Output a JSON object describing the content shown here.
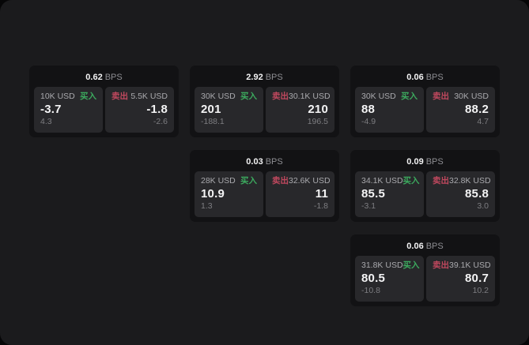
{
  "colors": {
    "buy_green": "#3caa5e",
    "sell_red": "#c0485e",
    "surface_bg": "#1b1b1d",
    "card_bg": "#121214",
    "tile_bg": "#28282b"
  },
  "cards": [
    {
      "grid_position": {
        "row": 1,
        "col": 1
      },
      "bps_value": "0.62",
      "bps_unit": "BPS",
      "buy": {
        "amount": "10K USD",
        "side_label": "买入",
        "price": "-3.7",
        "delta": "4.3"
      },
      "sell": {
        "amount": "5.5K USD",
        "side_label": "卖出",
        "price": "-1.8",
        "delta": "-2.6"
      }
    },
    {
      "grid_position": {
        "row": 1,
        "col": 2
      },
      "bps_value": "2.92",
      "bps_unit": "BPS",
      "buy": {
        "amount": "30K USD",
        "side_label": "买入",
        "price": "201",
        "delta": "-188.1"
      },
      "sell": {
        "amount": "30.1K USD",
        "side_label": "卖出",
        "price": "210",
        "delta": "196.5"
      }
    },
    {
      "grid_position": {
        "row": 1,
        "col": 3
      },
      "bps_value": "0.06",
      "bps_unit": "BPS",
      "buy": {
        "amount": "30K USD",
        "side_label": "买入",
        "price": "88",
        "delta": "-4.9"
      },
      "sell": {
        "amount": "30K USD",
        "side_label": "卖出",
        "price": "88.2",
        "delta": "4.7"
      }
    },
    {
      "grid_position": {
        "row": 2,
        "col": 2
      },
      "bps_value": "0.03",
      "bps_unit": "BPS",
      "buy": {
        "amount": "28K USD",
        "side_label": "买入",
        "price": "10.9",
        "delta": "1.3"
      },
      "sell": {
        "amount": "32.6K USD",
        "side_label": "卖出",
        "price": "11",
        "delta": "-1.8"
      }
    },
    {
      "grid_position": {
        "row": 2,
        "col": 3
      },
      "bps_value": "0.09",
      "bps_unit": "BPS",
      "buy": {
        "amount": "34.1K USD",
        "side_label": "买入",
        "price": "85.5",
        "delta": "-3.1"
      },
      "sell": {
        "amount": "32.8K USD",
        "side_label": "卖出",
        "price": "85.8",
        "delta": "3.0"
      }
    },
    {
      "grid_position": {
        "row": 3,
        "col": 3
      },
      "bps_value": "0.06",
      "bps_unit": "BPS",
      "buy": {
        "amount": "31.8K USD",
        "side_label": "买入",
        "price": "80.5",
        "delta": "-10.8"
      },
      "sell": {
        "amount": "39.1K USD",
        "side_label": "卖出",
        "price": "80.7",
        "delta": "10.2"
      }
    }
  ]
}
